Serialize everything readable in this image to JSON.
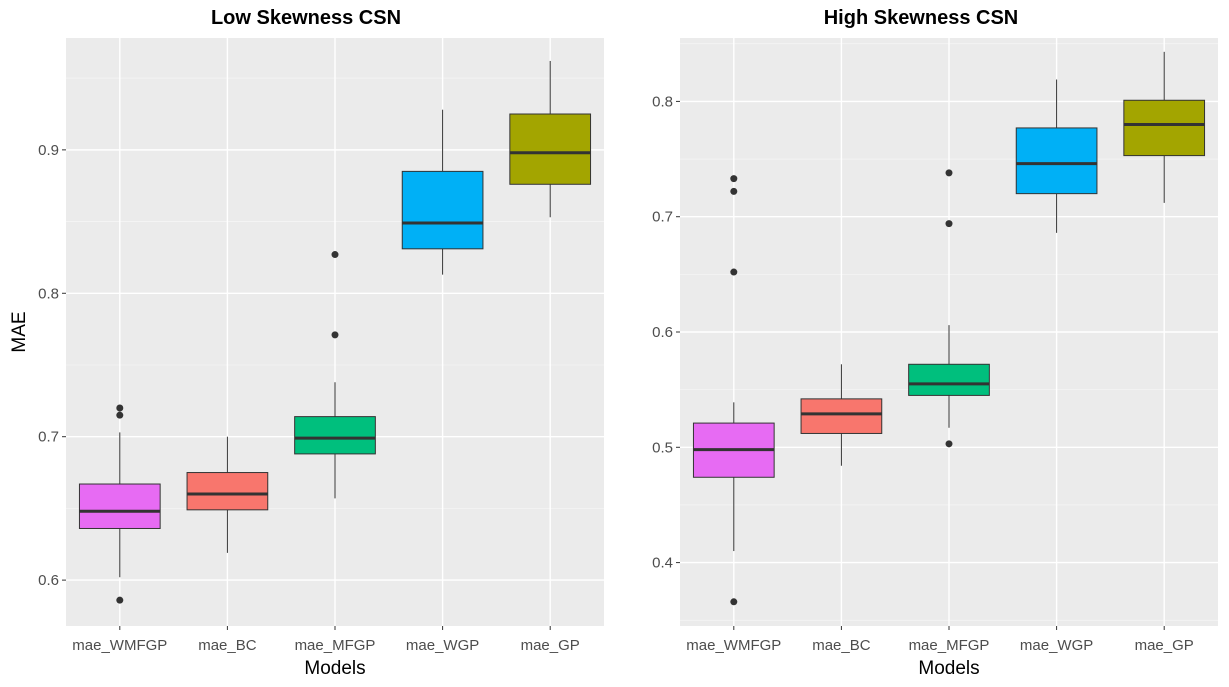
{
  "shared_ylabel": "MAE",
  "chart_data": [
    {
      "type": "boxplot",
      "title": "Low Skewness CSN",
      "xlabel": "Models",
      "ylabel": "MAE",
      "ylim": [
        0.568,
        0.978
      ],
      "yticks": [
        0.6,
        0.7,
        0.8,
        0.9
      ],
      "ytick_labels": [
        "0.6",
        "0.7",
        "0.8",
        "0.9"
      ],
      "categories": [
        "mae_WMFGP",
        "mae_BC",
        "mae_MFGP",
        "mae_WGP",
        "mae_GP"
      ],
      "colors": [
        "#E76BF3",
        "#F8766D",
        "#00BF7D",
        "#00B0F6",
        "#A3A500"
      ],
      "boxes": [
        {
          "min": 0.602,
          "q1": 0.636,
          "median": 0.648,
          "q3": 0.667,
          "max": 0.703,
          "outliers": [
            0.586,
            0.715,
            0.72
          ]
        },
        {
          "min": 0.619,
          "q1": 0.649,
          "median": 0.66,
          "q3": 0.675,
          "max": 0.7,
          "outliers": []
        },
        {
          "min": 0.657,
          "q1": 0.688,
          "median": 0.699,
          "q3": 0.714,
          "max": 0.738,
          "outliers": [
            0.771,
            0.827
          ]
        },
        {
          "min": 0.813,
          "q1": 0.831,
          "median": 0.849,
          "q3": 0.885,
          "max": 0.928,
          "outliers": []
        },
        {
          "min": 0.853,
          "q1": 0.876,
          "median": 0.898,
          "q3": 0.925,
          "max": 0.962,
          "outliers": []
        }
      ]
    },
    {
      "type": "boxplot",
      "title": "High Skewness CSN",
      "xlabel": "Models",
      "ylabel": "",
      "ylim": [
        0.345,
        0.855
      ],
      "yticks": [
        0.4,
        0.5,
        0.6,
        0.7,
        0.8
      ],
      "ytick_labels": [
        "0.4",
        "0.5",
        "0.6",
        "0.7",
        "0.8"
      ],
      "categories": [
        "mae_WMFGP",
        "mae_BC",
        "mae_MFGP",
        "mae_WGP",
        "mae_GP"
      ],
      "colors": [
        "#E76BF3",
        "#F8766D",
        "#00BF7D",
        "#00B0F6",
        "#A3A500"
      ],
      "boxes": [
        {
          "min": 0.41,
          "q1": 0.474,
          "median": 0.498,
          "q3": 0.521,
          "max": 0.539,
          "outliers": [
            0.366,
            0.652,
            0.722,
            0.733
          ]
        },
        {
          "min": 0.484,
          "q1": 0.512,
          "median": 0.529,
          "q3": 0.542,
          "max": 0.572,
          "outliers": []
        },
        {
          "min": 0.517,
          "q1": 0.545,
          "median": 0.555,
          "q3": 0.572,
          "max": 0.606,
          "outliers": [
            0.503,
            0.694,
            0.738
          ]
        },
        {
          "min": 0.686,
          "q1": 0.72,
          "median": 0.746,
          "q3": 0.777,
          "max": 0.819,
          "outliers": []
        },
        {
          "min": 0.712,
          "q1": 0.753,
          "median": 0.78,
          "q3": 0.801,
          "max": 0.843,
          "outliers": []
        }
      ]
    }
  ]
}
